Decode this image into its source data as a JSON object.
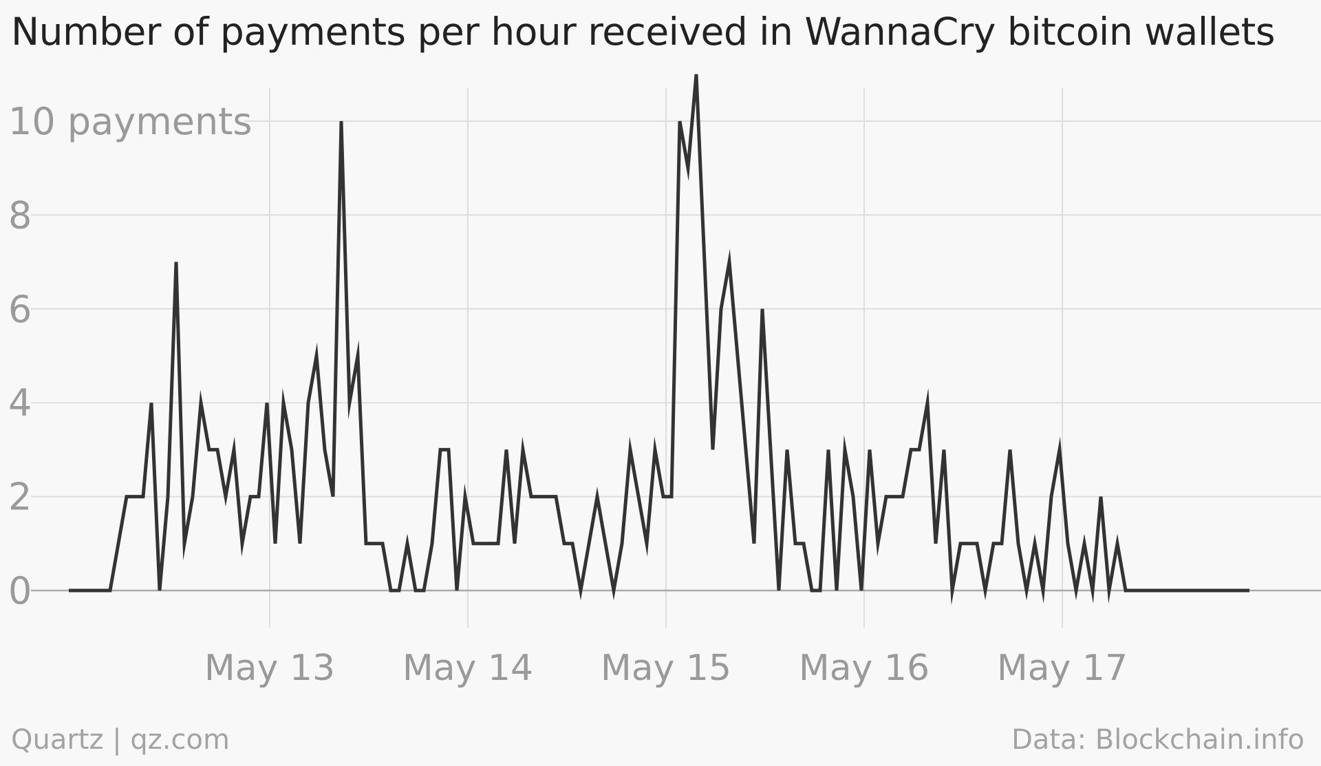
{
  "title": "Number of payments per hour received in WannaCry bitcoin wallets",
  "footer": {
    "credit": "Quartz | qz.com",
    "source": "Data: Blockchain.info"
  },
  "colors": {
    "line": "#333333",
    "grid": "#dddddd",
    "zero_line": "#aaaaaa",
    "tick_text": "#9a9a9a",
    "background": "#f8f8f8"
  },
  "chart_data": {
    "type": "line",
    "title": "Number of payments per hour received in WannaCry bitcoin wallets",
    "xlabel": "",
    "ylabel": "",
    "ylim": [
      0,
      11
    ],
    "y_ticks": [
      0,
      2,
      4,
      6,
      8,
      10
    ],
    "y_tick_labels": [
      "0",
      "2",
      "4",
      "6",
      "8",
      "10 payments"
    ],
    "x_tick_labels": [
      "May 13",
      "May 14",
      "May 15",
      "May 16",
      "May 17"
    ],
    "x_tick_hours": [
      24,
      48,
      72,
      96,
      120
    ],
    "x_start_hour": 0,
    "x_step_hours": 1,
    "grid": true,
    "series": [
      {
        "values": [
          0,
          0,
          0,
          0,
          0,
          0,
          1,
          2,
          2,
          2,
          4,
          0,
          2,
          7,
          1,
          2,
          4,
          3,
          3,
          2,
          3,
          1,
          2,
          2,
          4,
          1,
          4,
          3,
          1,
          4,
          5,
          3,
          2,
          10,
          4,
          5,
          1,
          1,
          1,
          0,
          0,
          1,
          0,
          0,
          1,
          3,
          3,
          0,
          2,
          1,
          1,
          1,
          1,
          3,
          1,
          3,
          2,
          2,
          2,
          2,
          1,
          1,
          0,
          1,
          2,
          1,
          0,
          1,
          3,
          2,
          1,
          3,
          2,
          2,
          10,
          9,
          11,
          7,
          3,
          6,
          7,
          5,
          3,
          1,
          6,
          3,
          0,
          3,
          1,
          1,
          0,
          0,
          3,
          0,
          3,
          2,
          0,
          3,
          1,
          2,
          2,
          2,
          3,
          3,
          4,
          1,
          3,
          0,
          1,
          1,
          1,
          0,
          1,
          1,
          3,
          1,
          0,
          1,
          0,
          2,
          3,
          1,
          0,
          1,
          0,
          2,
          0,
          1,
          0,
          0,
          0,
          0,
          0,
          0,
          0,
          0,
          0,
          0,
          0,
          0,
          0,
          0,
          0,
          0
        ]
      }
    ]
  }
}
